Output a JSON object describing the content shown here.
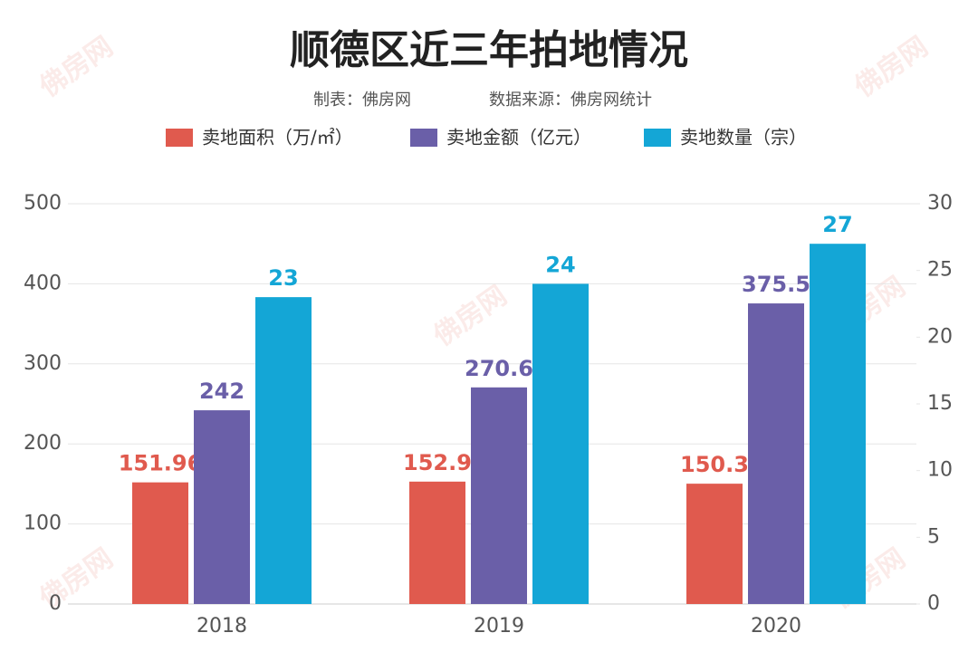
{
  "chart_data": {
    "type": "bar",
    "title": "顺德区近三年拍地情况",
    "subtitle": "制表：佛房网",
    "source": "数据来源：佛房网统计",
    "watermark": "佛房网",
    "categories": [
      "2018",
      "2019",
      "2020"
    ],
    "series": [
      {
        "name": "卖地面积（万/㎡）",
        "color": "#e05a4e",
        "values": [
          151.96,
          152.9,
          150.3
        ]
      },
      {
        "name": "卖地金额（亿元）",
        "color": "#6a5fa8",
        "values": [
          242,
          270.6,
          375.5
        ]
      },
      {
        "name": "卖地数量（宗）",
        "color": "#14a6d6",
        "values": [
          23,
          24,
          27
        ],
        "axis": "y2"
      }
    ],
    "ylim": [
      0,
      500
    ],
    "yticks": [
      0,
      100,
      200,
      300,
      400,
      500
    ],
    "y2lim": [
      0,
      30
    ],
    "y2ticks": [
      0,
      5,
      10,
      15,
      20,
      25,
      30
    ],
    "grid": true
  }
}
